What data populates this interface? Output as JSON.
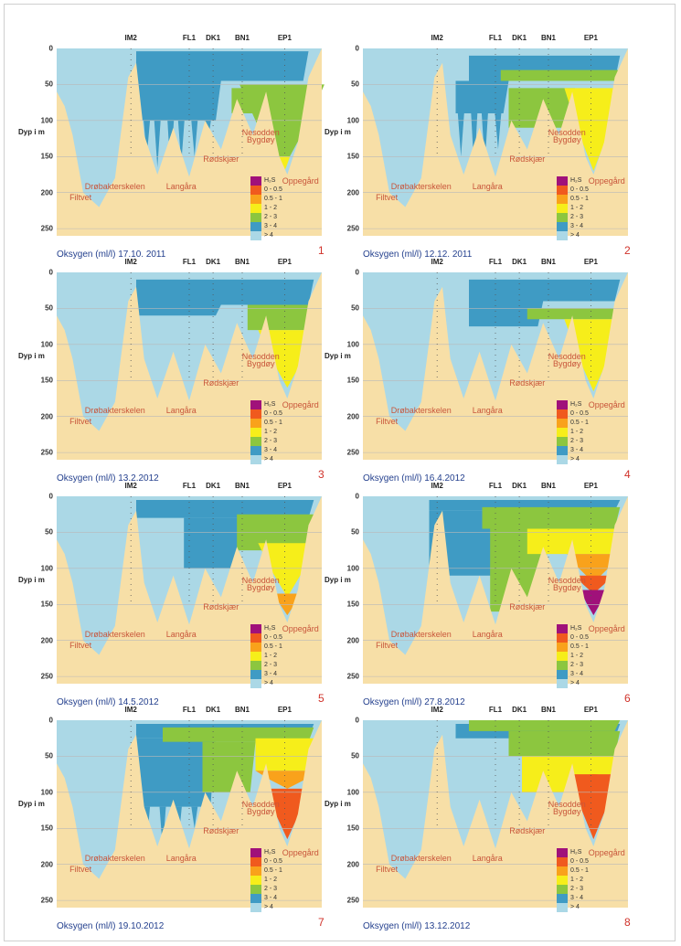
{
  "stations": [
    "IM2",
    "FL1",
    "DK1",
    "BN1",
    "EP1"
  ],
  "y_ticks": [
    "0",
    "50",
    "100",
    "150",
    "200",
    "250"
  ],
  "y_label": "Dyp i m",
  "places": {
    "filtvet": "Filtvet",
    "drobak": "Drøbakterskelen",
    "langara": "Langåra",
    "rodskjaer": "Rødskjær",
    "nesodden": "Nesodden",
    "bygdoy": "Bygdøy",
    "oppegard": "Oppegård"
  },
  "legend": [
    {
      "label": "H₂S",
      "color": "#a0117a"
    },
    {
      "label": "0 - 0.5",
      "color": "#f05a1e"
    },
    {
      "label": "0.5 - 1",
      "color": "#f9a21b"
    },
    {
      "label": "1 - 2",
      "color": "#f6ee1a"
    },
    {
      "label": "2 - 3",
      "color": "#8cc63f"
    },
    {
      "label": "3 - 4",
      "color": "#3f9bc4"
    },
    {
      "label": "> 4",
      "color": "#abd8e6"
    }
  ],
  "colors": {
    "land": "#f7dfa7",
    "water_gt4": "#abd8e6",
    "o2_3_4": "#3f9bc4",
    "o2_2_3": "#8cc63f",
    "o2_1_2": "#f6ee1a",
    "o2_05_1": "#f9a21b",
    "o2_0_05": "#f05a1e",
    "h2s": "#a0117a",
    "caption_blue": "#24408e",
    "panel_number_red": "#d0322a"
  },
  "chart_data": [
    {
      "type": "heatmap",
      "panel": "1",
      "caption": "Oksygen (ml/l) 17.10. 2011",
      "ylim": [
        0,
        260
      ],
      "oxygen_zones": {
        "3-4": [
          0,
          160
        ],
        "2-3": [
          50,
          170
        ],
        "1-2": [
          155,
          175
        ]
      }
    },
    {
      "type": "heatmap",
      "panel": "2",
      "caption": "Oksygen (ml/l) 12.12. 2011",
      "ylim": [
        0,
        260
      ],
      "oxygen_zones": {
        "3-4": [
          10,
          150
        ],
        "2-3": [
          45,
          160
        ],
        "1-2": [
          55,
          170
        ]
      }
    },
    {
      "type": "heatmap",
      "panel": "3",
      "caption": "Oksygen (ml/l) 13.2.2012",
      "ylim": [
        0,
        260
      ],
      "oxygen_zones": {
        "3-4": [
          10,
          60
        ],
        "2-3": [
          45,
          80
        ],
        "1-2": [
          80,
          160
        ]
      }
    },
    {
      "type": "heatmap",
      "panel": "4",
      "caption": "Oksygen (ml/l) 16.4.2012",
      "ylim": [
        0,
        260
      ],
      "oxygen_zones": {
        "3-4": [
          10,
          75
        ],
        "2-3": [
          50,
          65
        ],
        "1-2": [
          65,
          165
        ]
      }
    },
    {
      "type": "heatmap",
      "panel": "5",
      "caption": "Oksygen (ml/l) 14.5.2012",
      "ylim": [
        0,
        260
      ],
      "oxygen_zones": {
        "3-4": [
          5,
          110
        ],
        "2-3": [
          25,
          75
        ],
        "1-2": [
          65,
          140
        ],
        "0.5-1": [
          135,
          165
        ]
      }
    },
    {
      "type": "heatmap",
      "panel": "6",
      "caption": "Oksygen (ml/l) 27.8.2012",
      "ylim": [
        0,
        260
      ],
      "oxygen_zones": {
        "3-4": [
          5,
          120
        ],
        "2-3": [
          20,
          160
        ],
        "1-2": [
          45,
          80
        ],
        "0.5-1": [
          80,
          110
        ],
        "0-0.5": [
          110,
          130
        ],
        "H2S": [
          130,
          165
        ]
      }
    },
    {
      "type": "heatmap",
      "panel": "7",
      "caption": "Oksygen (ml/l) 19.10.2012",
      "ylim": [
        0,
        260
      ],
      "oxygen_zones": {
        "3-4": [
          10,
          180
        ],
        "2-3": [
          10,
          100
        ],
        "1-2": [
          25,
          70
        ],
        "0.5-1": [
          70,
          95
        ],
        "0-0.5": [
          95,
          165
        ]
      }
    },
    {
      "type": "heatmap",
      "panel": "8",
      "caption": "Oksygen (ml/l) 13.12.2012",
      "ylim": [
        0,
        260
      ],
      "oxygen_zones": {
        "3-4": [
          5,
          55
        ],
        "2-3": [
          0,
          50
        ],
        "1-2": [
          50,
          100
        ],
        "0-0.5": [
          75,
          165
        ]
      }
    }
  ]
}
